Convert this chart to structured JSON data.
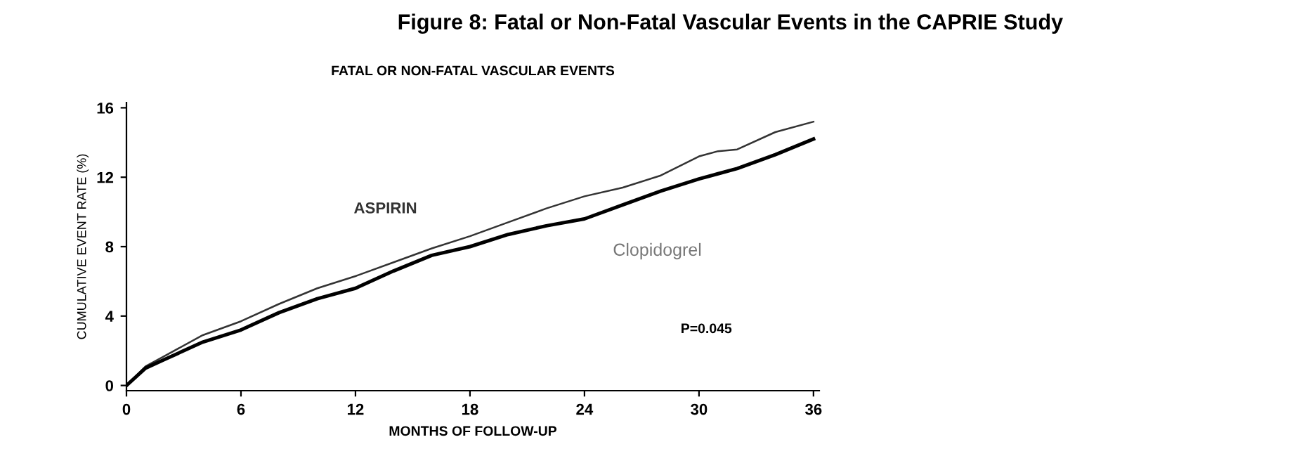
{
  "chart_data": {
    "type": "line",
    "title": "Figure 8: Fatal or Non-Fatal Vascular Events in the CAPRIE Study",
    "subtitle": "FATAL OR NON-FATAL VASCULAR EVENTS",
    "xlabel": "MONTHS OF FOLLOW-UP",
    "ylabel": "CUMULATIVE EVENT RATE (%)",
    "x": [
      0,
      1,
      2,
      4,
      6,
      8,
      10,
      12,
      14,
      16,
      18,
      20,
      22,
      24,
      26,
      28,
      30,
      31,
      32,
      34,
      36
    ],
    "series": [
      {
        "name": "ASPIRIN",
        "color": "#333333",
        "values": [
          0,
          1.1,
          1.7,
          2.9,
          3.7,
          4.7,
          5.6,
          6.3,
          7.1,
          7.9,
          8.6,
          9.4,
          10.2,
          10.9,
          11.4,
          12.1,
          13.2,
          13.5,
          13.6,
          14.6,
          15.2
        ]
      },
      {
        "name": "Clopidogrel",
        "color": "#000000",
        "values": [
          0,
          1.0,
          1.5,
          2.5,
          3.2,
          4.2,
          5.0,
          5.6,
          6.6,
          7.5,
          8.0,
          8.7,
          9.2,
          9.6,
          10.4,
          11.2,
          11.9,
          12.2,
          12.5,
          13.3,
          14.2
        ]
      }
    ],
    "xlim": [
      0,
      36.3
    ],
    "ylim": [
      -0.3,
      16.3
    ],
    "xticks": [
      0,
      6,
      12,
      18,
      24,
      30,
      36
    ],
    "yticks": [
      0,
      4,
      8,
      12,
      16
    ],
    "annotations": [
      "P=0.045"
    ],
    "grid": false,
    "legend": false,
    "marker": "none",
    "line_style": "solid"
  }
}
